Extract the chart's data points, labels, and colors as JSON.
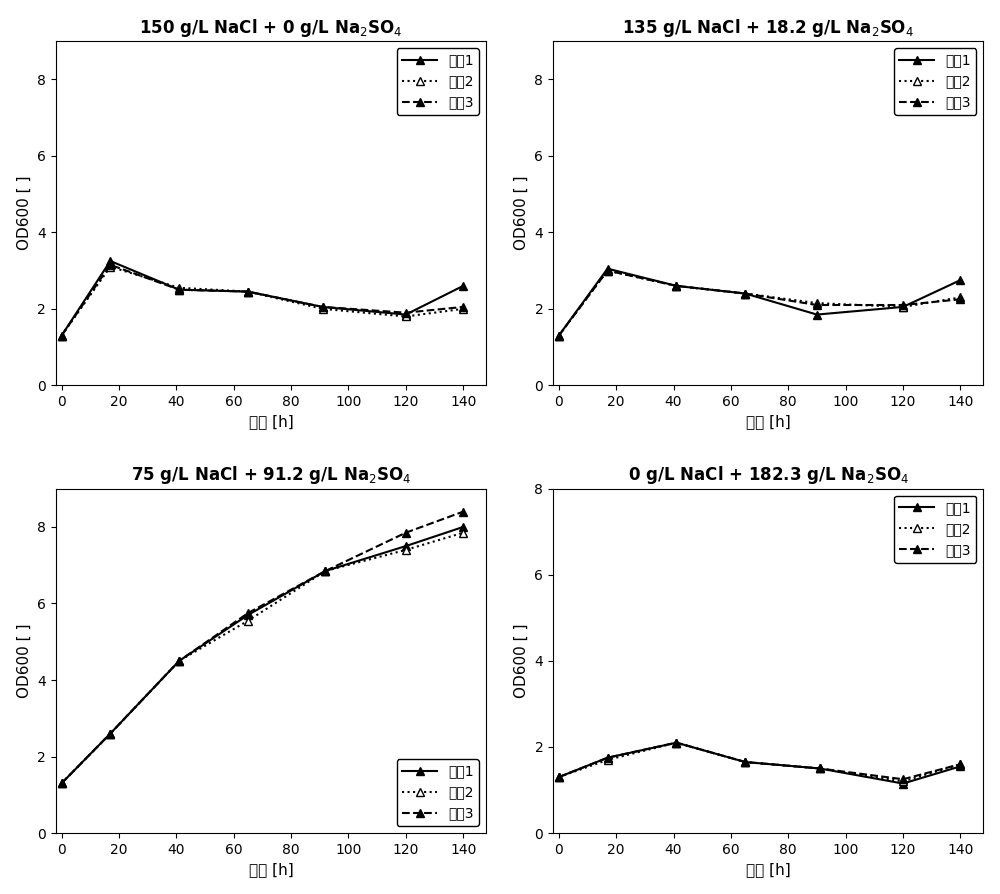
{
  "subplots": [
    {
      "title": "150 g/L NaCl + 0 g/L Na$_2$SO$_4$",
      "time": [
        0,
        17,
        41,
        65,
        91,
        120,
        140
      ],
      "flask1": [
        1.3,
        3.25,
        2.5,
        2.45,
        2.05,
        1.85,
        2.6
      ],
      "flask2": [
        1.3,
        3.1,
        2.55,
        2.45,
        2.0,
        1.8,
        2.0
      ],
      "flask3": [
        1.3,
        3.15,
        2.5,
        2.45,
        2.05,
        1.9,
        2.05
      ],
      "ylim": [
        0,
        9
      ],
      "yticks": [
        0,
        2,
        4,
        6,
        8
      ],
      "legend_loc": "upper right",
      "show_legend": true
    },
    {
      "title": "135 g/L NaCl + 18.2 g/L Na$_2$SO$_4$",
      "time": [
        0,
        17,
        41,
        65,
        90,
        120,
        140
      ],
      "flask1": [
        1.3,
        3.05,
        2.6,
        2.4,
        1.85,
        2.05,
        2.75
      ],
      "flask2": [
        1.3,
        3.0,
        2.6,
        2.4,
        2.15,
        2.05,
        2.3
      ],
      "flask3": [
        1.3,
        3.0,
        2.6,
        2.4,
        2.1,
        2.1,
        2.25
      ],
      "ylim": [
        0,
        9
      ],
      "yticks": [
        0,
        2,
        4,
        6,
        8
      ],
      "legend_loc": "upper right",
      "show_legend": true
    },
    {
      "title": "75 g/L NaCl + 91.2 g/L Na$_2$SO$_4$",
      "time": [
        0,
        17,
        41,
        65,
        92,
        120,
        140
      ],
      "flask1": [
        1.3,
        2.6,
        4.5,
        5.7,
        6.85,
        7.5,
        8.0
      ],
      "flask2": [
        1.3,
        2.6,
        4.5,
        5.55,
        6.85,
        7.4,
        7.85
      ],
      "flask3": [
        1.3,
        2.6,
        4.5,
        5.75,
        6.85,
        7.85,
        8.4
      ],
      "ylim": [
        0,
        9
      ],
      "yticks": [
        0,
        2,
        4,
        6,
        8
      ],
      "legend_loc": "lower right",
      "show_legend": true
    },
    {
      "title": "0 g/L NaCl + 182.3 g/L Na$_2$SO$_4$",
      "time": [
        0,
        17,
        41,
        65,
        91,
        120,
        140
      ],
      "flask1": [
        1.3,
        1.75,
        2.1,
        1.65,
        1.5,
        1.15,
        1.55
      ],
      "flask2": [
        1.3,
        1.7,
        2.1,
        1.65,
        1.5,
        1.2,
        1.6
      ],
      "flask3": [
        1.3,
        1.75,
        2.1,
        1.65,
        1.5,
        1.25,
        1.6
      ],
      "ylim": [
        0,
        8
      ],
      "yticks": [
        0,
        2,
        4,
        6,
        8
      ],
      "legend_loc": "upper right",
      "show_legend": true
    }
  ],
  "xlabel": "时间 [h]",
  "ylabel": "OD600 [ ]",
  "legend_labels": [
    "烧瓶1",
    "烧瓶2",
    "烧瓶3"
  ],
  "xticks": [
    0,
    20,
    40,
    60,
    80,
    100,
    120,
    140
  ],
  "line_color": "#000000",
  "bg_color": "#ffffff",
  "font_size": 10,
  "title_font_size": 12,
  "label_font_size": 11
}
